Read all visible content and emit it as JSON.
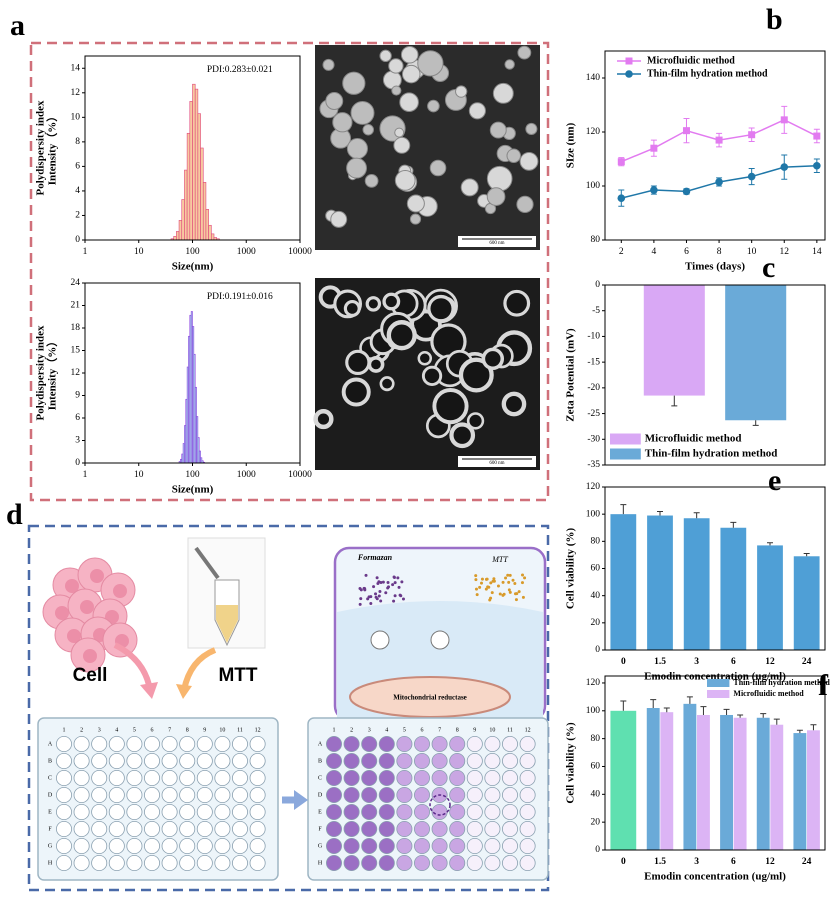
{
  "panel_labels": [
    "a",
    "b",
    "c",
    "d",
    "e",
    "f"
  ],
  "figure": {
    "tem_scale_label": "600 nm"
  },
  "chart_data": [
    {
      "type": "histogram",
      "bins": [
        35.5,
        39.8,
        44.7,
        50.1,
        56.2,
        63.1,
        70.8,
        79.4,
        89.1,
        100,
        112.2,
        125.9,
        141.3,
        158.5,
        177.8,
        199.5,
        223.9,
        251.2,
        281.8,
        316.2,
        354.8
      ],
      "values": [
        0,
        0.1,
        0.3,
        0.7,
        1.6,
        3.3,
        5.7,
        8.7,
        11.3,
        12.7,
        12.3,
        10.3,
        7.5,
        4.7,
        2.5,
        1.2,
        0.5,
        0.2,
        0.1,
        0
      ],
      "color": "#f7c9a0",
      "edge_color": "#e0457a",
      "x_log": true,
      "xlim": [
        1,
        10000
      ],
      "xticks": [
        1,
        10,
        100,
        1000,
        10000
      ],
      "ylim": [
        0,
        15
      ],
      "yticks": [
        0,
        2,
        4,
        6,
        8,
        10,
        12,
        14
      ],
      "xlabel": "Size(nm)",
      "ylabel": [
        "Polydispersity index",
        "Intensity（%）"
      ],
      "annotation": "PDI:0.283±0.021"
    },
    {
      "type": "histogram",
      "bins": [
        53.1,
        56.2,
        59.6,
        63.1,
        66.8,
        70.8,
        75.0,
        79.4,
        84.1,
        89.1,
        94.4,
        100,
        105.9,
        112.2,
        118.9,
        125.9,
        133.4,
        141.3,
        149.6,
        158.5,
        167.9
      ],
      "values": [
        0,
        0.2,
        0.5,
        1.2,
        2.6,
        5.0,
        8.5,
        12.8,
        16.9,
        19.7,
        20.2,
        18.2,
        14.5,
        10.1,
        6.2,
        3.4,
        1.6,
        0.7,
        0.3,
        0.1
      ],
      "color": "#a9dcea",
      "edge_color": "#8a3be2",
      "x_log": true,
      "xlim": [
        1,
        10000
      ],
      "xticks": [
        1,
        10,
        100,
        1000,
        10000
      ],
      "ylim": [
        0,
        24
      ],
      "yticks": [
        0,
        3,
        6,
        9,
        12,
        15,
        18,
        21,
        24
      ],
      "xlabel": "Size(nm)",
      "ylabel": [
        "Polydispersity index",
        "Intensity（%）"
      ],
      "annotation": "PDI:0.191±0.016"
    },
    {
      "type": "line",
      "x": [
        2,
        4,
        6,
        8,
        10,
        12,
        14
      ],
      "xlim": [
        1,
        14.5
      ],
      "xticks": [
        2,
        4,
        6,
        8,
        10,
        12,
        14
      ],
      "ylim": [
        80,
        150
      ],
      "yticks": [
        80,
        100,
        120,
        140
      ],
      "xlabel": "Times (days)",
      "ylabel": "SIze (nm)",
      "legend": "upper left",
      "series": [
        {
          "name": "Microfluidic method",
          "color": "#e27bf0",
          "marker": "square",
          "values": [
            109,
            114,
            120.5,
            117,
            119,
            124.5,
            118.5
          ],
          "errors": [
            1.5,
            3,
            4.5,
            2.5,
            2.5,
            5,
            2.5
          ]
        },
        {
          "name": "Thin-film hydration method",
          "color": "#1f77a8",
          "marker": "circle",
          "values": [
            95.5,
            98.5,
            98,
            101.5,
            103.5,
            107,
            107.5
          ],
          "errors": [
            3,
            1.5,
            1,
            1.5,
            3,
            4.5,
            2.5
          ]
        }
      ]
    },
    {
      "type": "bar",
      "categories": [
        null
      ],
      "ylim": [
        -35,
        0
      ],
      "yticks": [
        0,
        -5,
        -10,
        -15,
        -20,
        -25,
        -30,
        -35
      ],
      "ylabel": "Zeta Potential (mV)",
      "legend": "lower left",
      "series": [
        {
          "name": "Microfluidic method",
          "color": "#d9a8f5",
          "values": [
            -21.5
          ],
          "errors": [
            2
          ]
        },
        {
          "name": "Thin-film hydration method",
          "color": "#6aaad8",
          "values": [
            -26.3
          ],
          "errors": [
            1
          ]
        }
      ]
    },
    {
      "type": "bar",
      "categories": [
        "0",
        "1.5",
        "3",
        "6",
        "12",
        "24"
      ],
      "values": [
        100,
        99,
        97,
        90,
        77,
        69
      ],
      "errors": [
        7,
        3,
        4,
        4,
        2,
        2
      ],
      "color": "#4f9fd6",
      "ylim": [
        0,
        120
      ],
      "yticks": [
        0,
        20,
        40,
        60,
        80,
        100,
        120
      ],
      "xlabel": "Emodin concentration (ug/ml)",
      "ylabel": "Cell viability (%)"
    },
    {
      "type": "bar",
      "categories": [
        "0",
        "1.5",
        "3",
        "6",
        "12",
        "24"
      ],
      "ylim": [
        0,
        125
      ],
      "yticks": [
        0,
        20,
        40,
        60,
        80,
        100,
        120
      ],
      "xlabel": "Emodin concentration (ug/ml)",
      "ylabel": "Cell viability (%)",
      "legend": "upper right",
      "series": [
        {
          "color": "#5fe0b0",
          "values": [
            100,
            null,
            null,
            null,
            null,
            null
          ],
          "errors": [
            7,
            null,
            null,
            null,
            null,
            null
          ]
        },
        {
          "name": "Thin-film hydration method",
          "color": "#6aaad8",
          "values": [
            null,
            102,
            105,
            97,
            95,
            84
          ],
          "errors": [
            null,
            6,
            5,
            4,
            3,
            2
          ]
        },
        {
          "name": "Microfluidic method",
          "color": "#dcb4f5",
          "values": [
            null,
            99,
            97,
            95,
            90,
            86
          ],
          "errors": [
            null,
            3,
            6,
            2,
            4,
            4
          ]
        }
      ]
    }
  ],
  "diagram": {
    "cell_label": "Cell",
    "mtt_label": "MTT",
    "formazan_label": "Formazan",
    "mtt_inset_label": "MTT",
    "enzyme_label": "Mitochondrial reductase",
    "plate_columns": [
      "1",
      "2",
      "3",
      "4",
      "5",
      "6",
      "7",
      "8",
      "9",
      "10",
      "11",
      "12"
    ],
    "plate_rows": [
      "A",
      "B",
      "C",
      "D",
      "E",
      "F",
      "G",
      "H"
    ]
  }
}
